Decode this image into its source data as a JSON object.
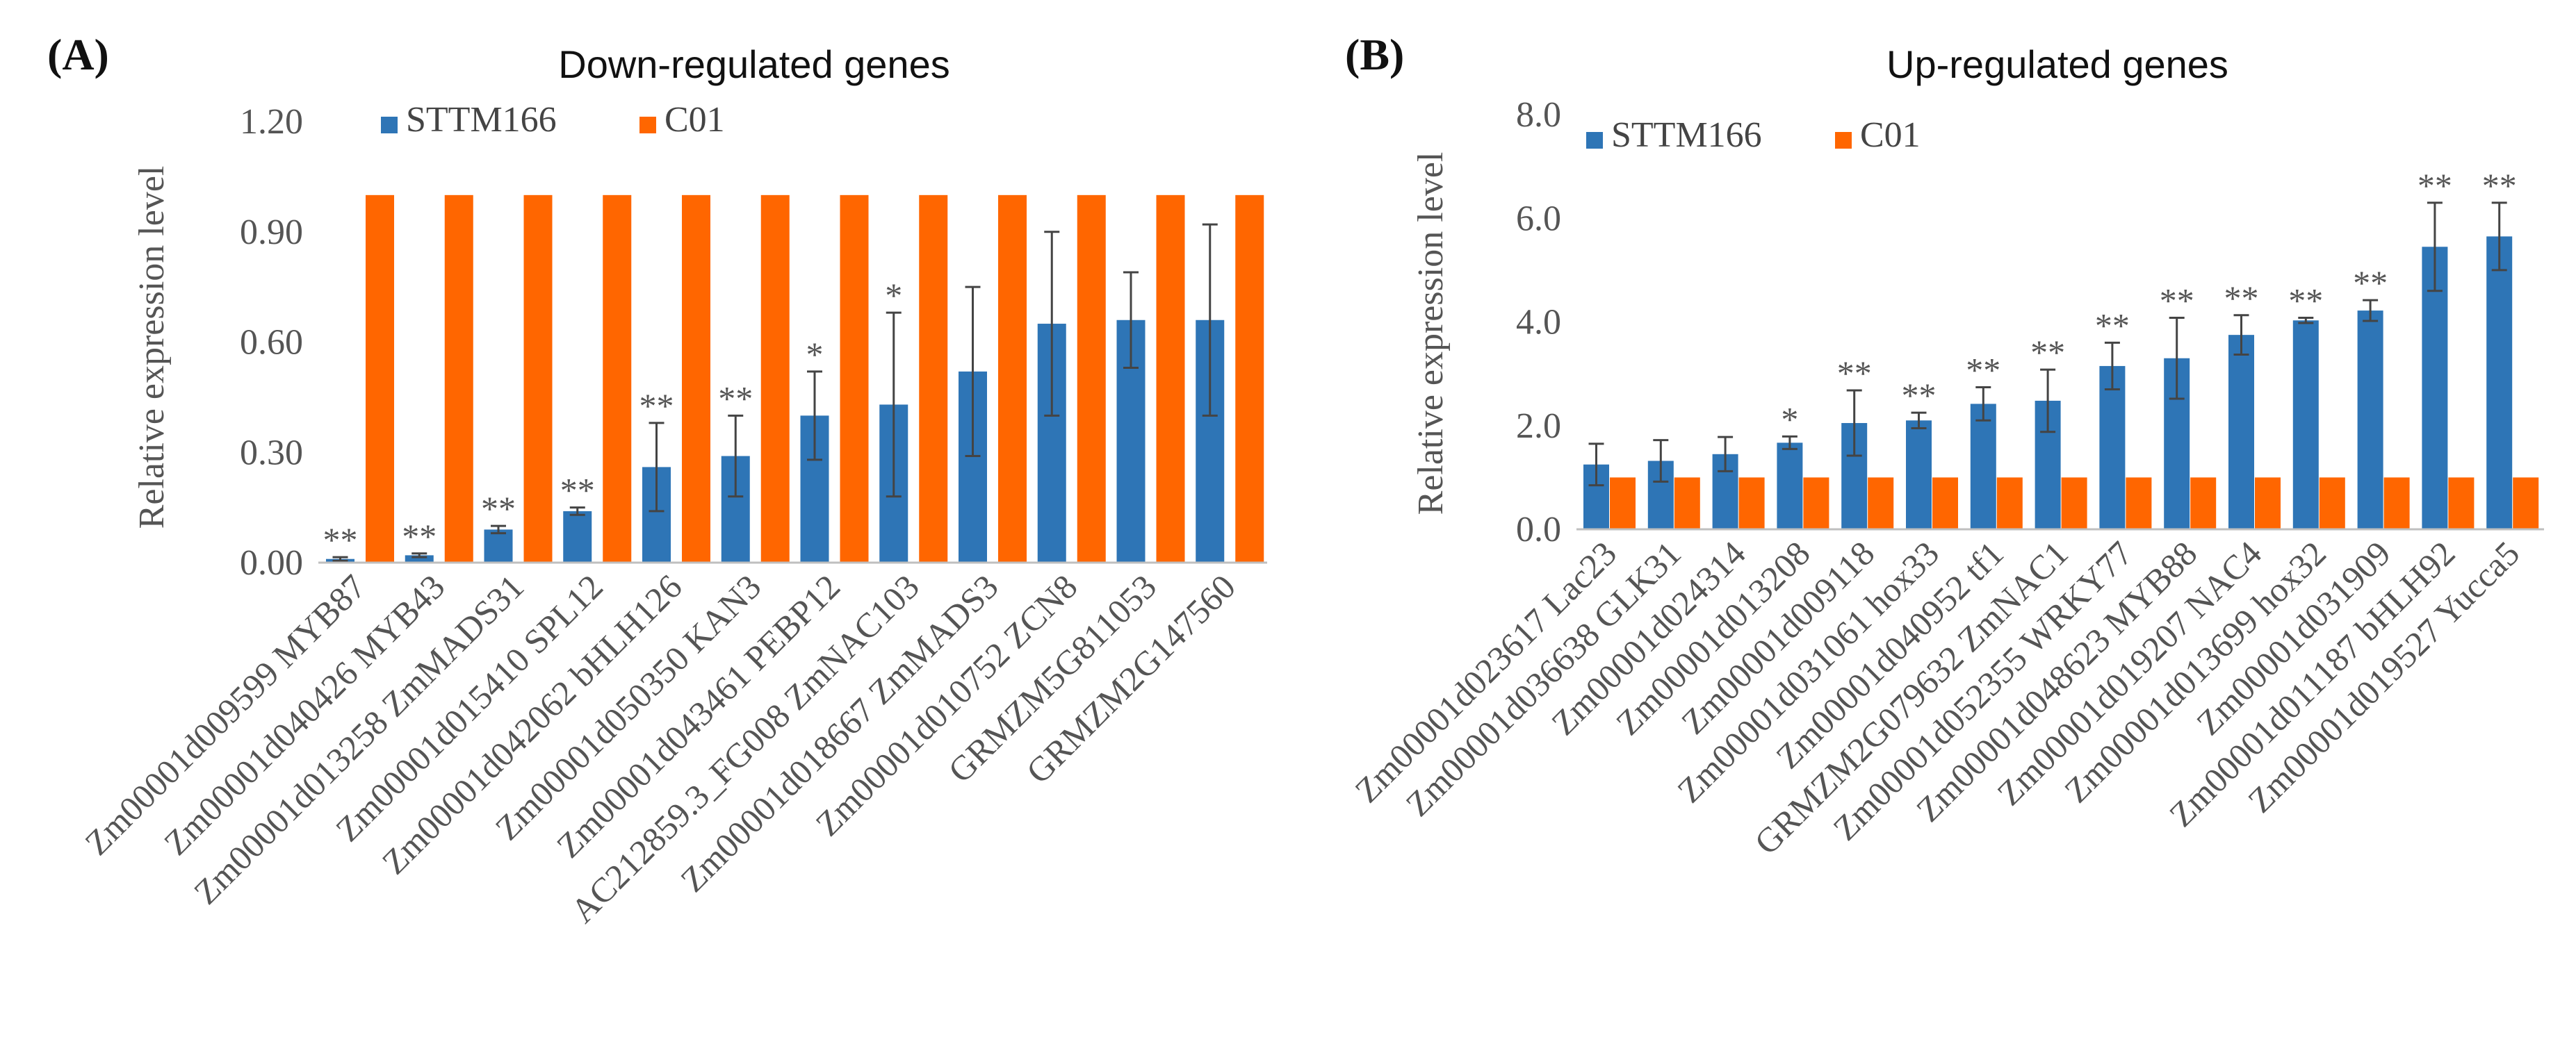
{
  "chart_data": [
    {
      "type": "bar",
      "panel_label": "(A)",
      "title": "Down-regulated genes",
      "xlabel": "",
      "ylabel": "Relative expression level",
      "ylim": [
        0,
        1.2
      ],
      "yticks": [
        "0.00",
        "0.30",
        "0.60",
        "0.90",
        "1.20"
      ],
      "ytick_values": [
        0,
        0.3,
        0.6,
        0.9,
        1.2
      ],
      "legend_position": "top-left",
      "colors": {
        "STTM166": "#2E75B6",
        "C01": "#FF6600"
      },
      "categories": [
        "Zm00001d009599 MYB87",
        "Zm00001d040426 MYB43",
        "Zm00001d013258 ZmMADS31",
        "Zm00001d015410 SPL12",
        "Zm00001d042062 bHLH126",
        "Zm00001d050350 KAN3",
        "Zm00001d043461 PEBP12",
        "AC212859.3_FG008 ZmNAC103",
        "Zm00001d018667 ZmMADS3",
        "Zm00001d010752 ZCN8",
        "GRMZM5G811053",
        "GRMZM2G147560"
      ],
      "series": [
        {
          "name": "STTM166",
          "values": [
            0.01,
            0.02,
            0.09,
            0.14,
            0.26,
            0.29,
            0.4,
            0.43,
            0.52,
            0.65,
            0.66,
            0.66
          ],
          "errors": [
            0.005,
            0.005,
            0.01,
            0.01,
            0.12,
            0.11,
            0.12,
            0.25,
            0.23,
            0.25,
            0.13,
            0.26
          ]
        },
        {
          "name": "C01",
          "values": [
            1,
            1,
            1,
            1,
            1,
            1,
            1,
            1,
            1,
            1,
            1,
            1
          ]
        }
      ],
      "significance": [
        "**",
        "**",
        "**",
        "**",
        "**",
        "**",
        "*",
        "*",
        "",
        "",
        "",
        ""
      ]
    },
    {
      "type": "bar",
      "panel_label": "(B)",
      "title": "Up-regulated genes",
      "xlabel": "",
      "ylabel": "Relative expression level",
      "ylim": [
        0,
        8
      ],
      "yticks": [
        "0.0",
        "2.0",
        "4.0",
        "6.0",
        "8.0"
      ],
      "ytick_values": [
        0,
        2,
        4,
        6,
        8
      ],
      "legend_position": "top-left",
      "colors": {
        "STTM166": "#2E75B6",
        "C01": "#FF6600"
      },
      "categories": [
        "Zm00001d023617 Lac23",
        "Zm00001d036638 GLK31",
        "Zm00001d024314",
        "Zm00001d013208",
        "Zm00001d009118",
        "Zm00001d031061 hox33",
        "Zm00001d040952 tf1",
        "GRMZM2G079632 ZmNAC1",
        "Zm00001d052355 WRKY77",
        "Zm00001d048623 MYB88",
        "Zm00001d019207 NAC4",
        "Zm00001d013699 hox32",
        "Zm00001d031909",
        "Zm00001d011187 bHLH92",
        "Zm00001d019527 Yucca5"
      ],
      "series": [
        {
          "name": "STTM166",
          "values": [
            1.25,
            1.32,
            1.45,
            1.67,
            2.05,
            2.1,
            2.42,
            2.48,
            3.15,
            3.3,
            3.75,
            4.03,
            4.22,
            5.45,
            5.65
          ],
          "errors": [
            0.4,
            0.4,
            0.33,
            0.12,
            0.63,
            0.15,
            0.32,
            0.6,
            0.45,
            0.78,
            0.38,
            0.05,
            0.2,
            0.85,
            0.65
          ]
        },
        {
          "name": "C01",
          "values": [
            1,
            1,
            1,
            1,
            1,
            1,
            1,
            1,
            1,
            1,
            1,
            1,
            1,
            1,
            1
          ]
        }
      ],
      "significance": [
        "",
        "",
        "",
        "*",
        "**",
        "**",
        "**",
        "**",
        "**",
        "**",
        "**",
        "**",
        "**",
        "**",
        "**"
      ]
    }
  ]
}
